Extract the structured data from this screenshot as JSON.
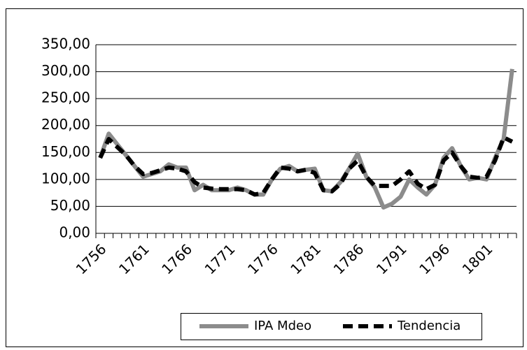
{
  "chart_data": {
    "type": "line",
    "categories": [
      "1756",
      null,
      null,
      null,
      null,
      "1761",
      null,
      null,
      null,
      null,
      "1766",
      null,
      null,
      null,
      null,
      "1771",
      null,
      null,
      null,
      null,
      "1776",
      null,
      null,
      null,
      null,
      "1781",
      null,
      null,
      null,
      null,
      "1786",
      null,
      null,
      null,
      null,
      "1791",
      null,
      null,
      null,
      null,
      "1796",
      null,
      null,
      null,
      null,
      "1801",
      null,
      null,
      null
    ],
    "series": [
      {
        "name": "IPA Mdeo",
        "color": "#8c8c8c",
        "dash": "solid",
        "values": [
          140,
          185,
          165,
          145,
          125,
          105,
          110,
          115,
          128,
          122,
          122,
          80,
          90,
          80,
          80,
          80,
          85,
          80,
          72,
          72,
          100,
          120,
          125,
          115,
          118,
          120,
          80,
          78,
          95,
          120,
          148,
          105,
          85,
          48,
          55,
          68,
          100,
          85,
          72,
          90,
          140,
          158,
          125,
          100,
          103,
          100,
          140,
          175,
          305
        ]
      },
      {
        "name": "Tendencia",
        "color": "#000000",
        "dash": "dashed",
        "values": [
          140,
          175,
          160,
          145,
          125,
          110,
          112,
          117,
          122,
          120,
          115,
          95,
          85,
          83,
          82,
          82,
          82,
          80,
          72,
          75,
          100,
          122,
          120,
          115,
          118,
          112,
          80,
          78,
          92,
          120,
          135,
          105,
          88,
          88,
          88,
          100,
          115,
          92,
          82,
          90,
          135,
          150,
          125,
          105,
          103,
          105,
          135,
          178,
          170
        ]
      }
    ],
    "ylim": [
      0,
      350
    ],
    "yticks": [
      {
        "value": 0,
        "label": "0,00"
      },
      {
        "value": 50,
        "label": "50,00"
      },
      {
        "value": 100,
        "label": "100,00"
      },
      {
        "value": 150,
        "label": "150,00"
      },
      {
        "value": 200,
        "label": "200,00"
      },
      {
        "value": 250,
        "label": "250,00"
      },
      {
        "value": 300,
        "label": "300,00"
      },
      {
        "value": 350,
        "label": "350,00"
      }
    ],
    "grid": true,
    "legend": "bottom"
  }
}
